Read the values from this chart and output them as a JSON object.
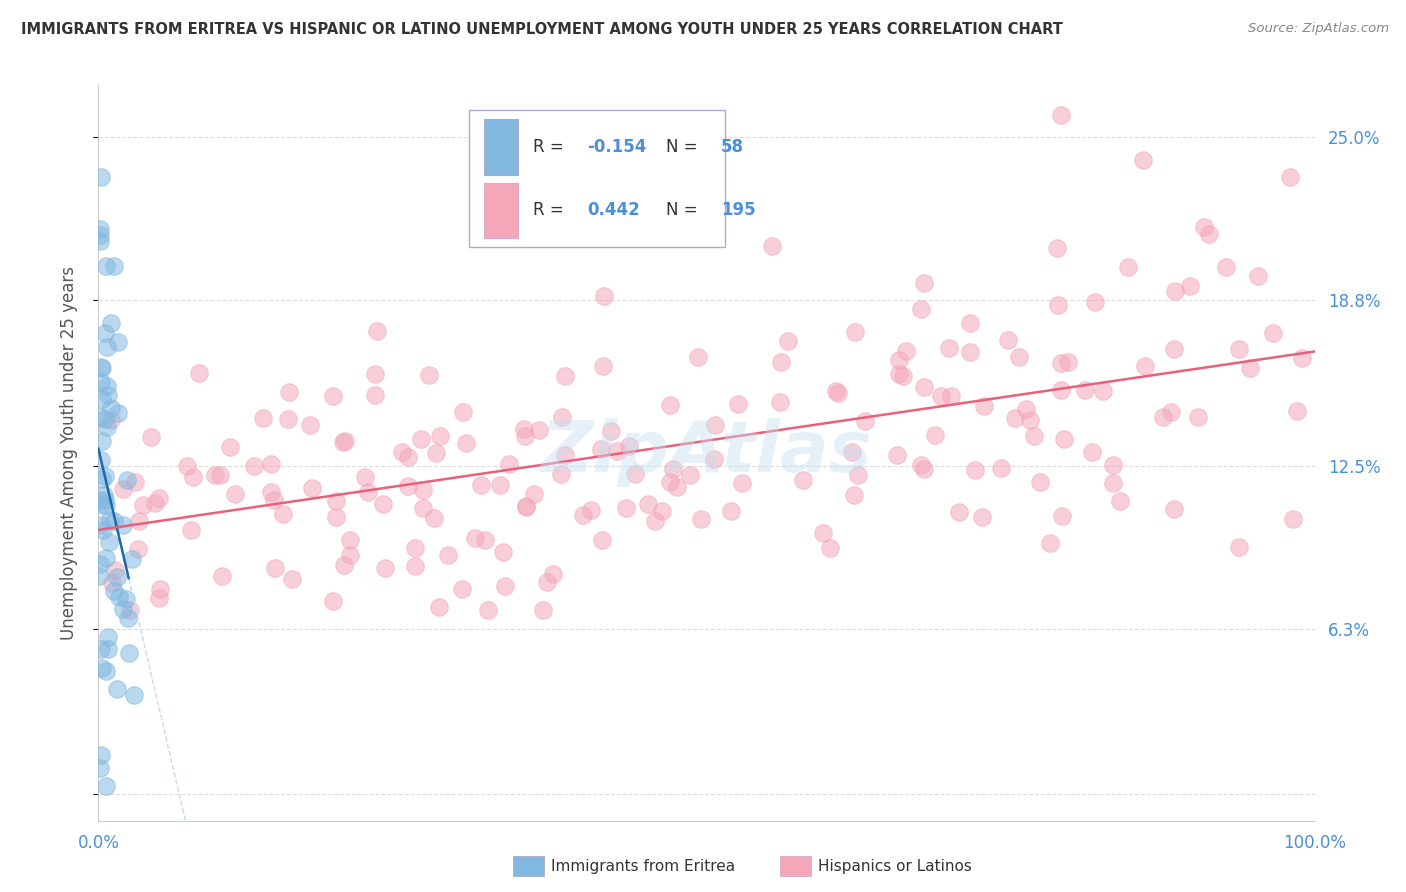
{
  "title": "IMMIGRANTS FROM ERITREA VS HISPANIC OR LATINO UNEMPLOYMENT AMONG YOUTH UNDER 25 YEARS CORRELATION CHART",
  "source": "Source: ZipAtlas.com",
  "ylabel": "Unemployment Among Youth under 25 years",
  "y_tick_values": [
    0.0,
    0.063,
    0.125,
    0.188,
    0.25
  ],
  "y_tick_labels": [
    "",
    "6.3%",
    "12.5%",
    "18.8%",
    "25.0%"
  ],
  "x_lim": [
    0,
    1.0
  ],
  "y_lim": [
    -0.01,
    0.27
  ],
  "color_blue": "#82b8e0",
  "color_pink": "#f4a7b9",
  "color_blue_line": "#1a6aad",
  "color_pink_line": "#e8607a",
  "color_dashed": "#c5daf0",
  "background": "#ffffff",
  "watermark": "ZipAtlas",
  "title_color": "#333333",
  "source_color": "#888888",
  "tick_color": "#4a90d9",
  "grid_color": "#dddddd",
  "blue_r": "-0.154",
  "blue_n": "58",
  "pink_r": "0.442",
  "pink_n": "195"
}
